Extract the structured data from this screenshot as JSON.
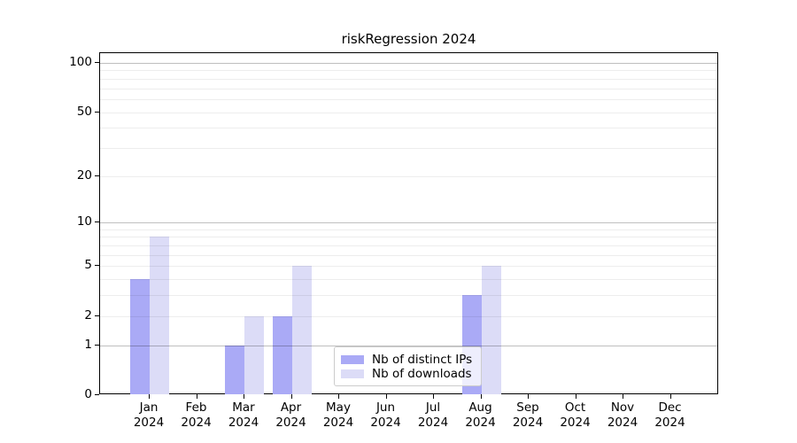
{
  "chart_data": {
    "type": "bar",
    "title": "riskRegression 2024",
    "categories": [
      "Jan",
      "Feb",
      "Mar",
      "Apr",
      "May",
      "Jun",
      "Jul",
      "Aug",
      "Sep",
      "Oct",
      "Nov",
      "Dec"
    ],
    "x_sublabel": "2024",
    "series": [
      {
        "name": "Nb of distinct IPs",
        "color": "#aaaaf6",
        "values": [
          4,
          0,
          1,
          2,
          0,
          0,
          0,
          3,
          0,
          0,
          0,
          0
        ]
      },
      {
        "name": "Nb of downloads",
        "color": "#dcdcf7",
        "values": [
          8,
          0,
          2,
          5,
          0,
          0,
          0,
          5,
          0,
          0,
          0,
          0
        ]
      }
    ],
    "y_scale": "log1p",
    "ylim": [
      0,
      114
    ],
    "y_ticks": [
      0,
      1,
      2,
      5,
      10,
      20,
      50,
      100
    ],
    "y_major_gridlines": [
      1,
      10,
      100
    ],
    "y_minor_gridlines": [
      2,
      3,
      4,
      5,
      6,
      7,
      8,
      9,
      20,
      30,
      40,
      50,
      60,
      70,
      80,
      90
    ],
    "grid": true,
    "legend_position": "lower center"
  },
  "colors": {
    "bar_distinct_ips": "#aaaaf6",
    "bar_downloads": "#dcdcf7",
    "grid_minor": "rgba(0,0,0,0.07)",
    "grid_major": "rgba(0,0,0,0.25)",
    "axis": "#000000",
    "legend_border": "#cccccc",
    "background": "#ffffff"
  }
}
